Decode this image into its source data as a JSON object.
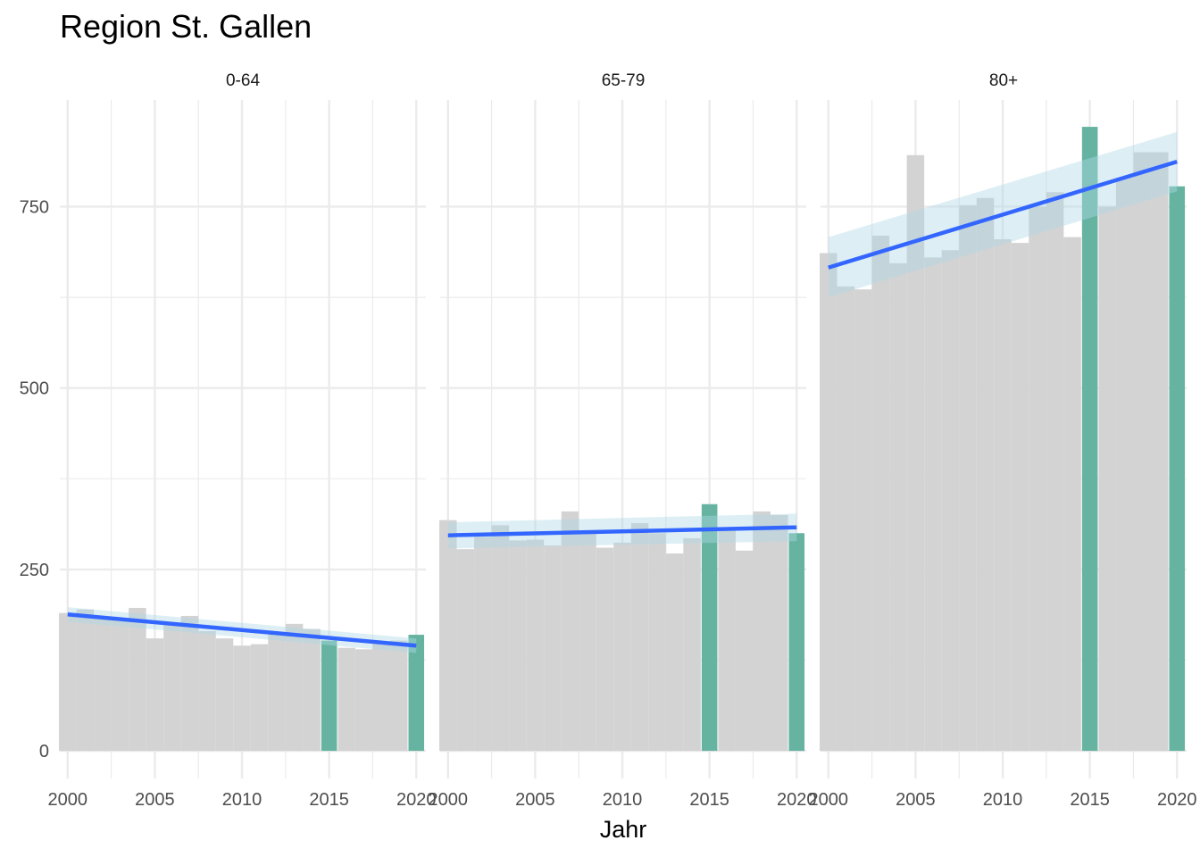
{
  "chart_data": {
    "type": "bar",
    "title": "Region St. Gallen",
    "xlabel": "Jahr",
    "ylabel": "",
    "ylim": [
      -38,
      897
    ],
    "y_ticks": [
      0,
      250,
      500,
      750
    ],
    "x_ticks": [
      2000,
      2005,
      2010,
      2015,
      2020
    ],
    "xlim": [
      1999.55,
      2020.55
    ],
    "grid": true,
    "highlight_years": [
      2015,
      2020
    ],
    "colors": {
      "bar": "#d3d3d3",
      "highlight": "#66b3a1",
      "trend": "#3366ff",
      "band": "#add8e6",
      "grid": "#ebebeb"
    },
    "panels": [
      {
        "label": "0-64",
        "years": [
          2000,
          2001,
          2002,
          2003,
          2004,
          2005,
          2006,
          2007,
          2008,
          2009,
          2010,
          2011,
          2012,
          2013,
          2014,
          2015,
          2016,
          2017,
          2018,
          2019,
          2020
        ],
        "values": [
          190,
          195,
          185,
          182,
          197,
          155,
          176,
          186,
          165,
          155,
          145,
          147,
          162,
          175,
          168,
          152,
          142,
          140,
          148,
          152,
          160
        ],
        "trend": {
          "start": [
            2000,
            188
          ],
          "end": [
            2020,
            145
          ]
        },
        "band": {
          "start": [
            198,
            178
          ],
          "end": [
            155,
            135
          ]
        }
      },
      {
        "label": "65-79",
        "years": [
          2000,
          2001,
          2002,
          2003,
          2004,
          2005,
          2006,
          2007,
          2008,
          2009,
          2010,
          2011,
          2012,
          2013,
          2014,
          2015,
          2016,
          2017,
          2018,
          2019,
          2020
        ],
        "values": [
          318,
          278,
          295,
          311,
          290,
          291,
          283,
          330,
          302,
          280,
          287,
          314,
          300,
          272,
          293,
          340,
          305,
          276,
          330,
          325,
          300
        ],
        "trend": {
          "start": [
            2000,
            297
          ],
          "end": [
            2020,
            308
          ]
        },
        "band": {
          "start": [
            315,
            279
          ],
          "end": [
            327,
            289
          ]
        }
      },
      {
        "label": "80+",
        "years": [
          2000,
          2001,
          2002,
          2003,
          2004,
          2005,
          2006,
          2007,
          2008,
          2009,
          2010,
          2011,
          2012,
          2013,
          2014,
          2015,
          2016,
          2017,
          2018,
          2019,
          2020
        ],
        "values": [
          686,
          640,
          636,
          710,
          672,
          821,
          680,
          690,
          752,
          762,
          705,
          700,
          750,
          770,
          708,
          860,
          750,
          790,
          825,
          825,
          778
        ],
        "trend": {
          "start": [
            2000,
            666
          ],
          "end": [
            2020,
            812
          ]
        },
        "band": {
          "start": [
            708,
            625
          ],
          "end": [
            853,
            771
          ]
        }
      }
    ]
  }
}
